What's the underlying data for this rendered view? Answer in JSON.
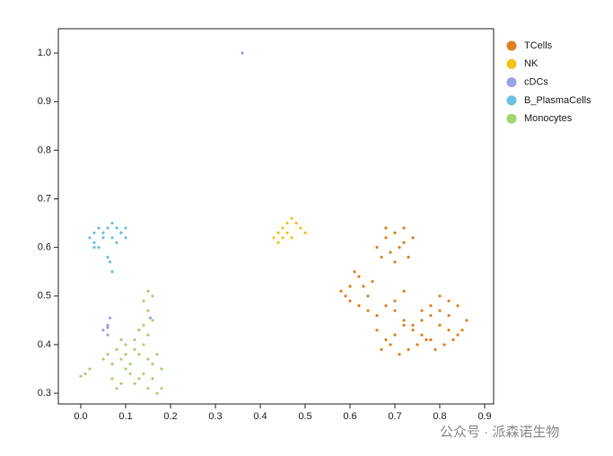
{
  "chart_data": {
    "type": "scatter",
    "xlim": [
      -0.05,
      0.92
    ],
    "ylim": [
      0.278,
      1.05
    ],
    "xticks": [
      {
        "value": 0,
        "label": "0.0"
      },
      0.1,
      0.2,
      0.3,
      0.4,
      0.5,
      0.6,
      0.7,
      0.8,
      0.9
    ],
    "yticks": [
      0.3,
      0.4,
      0.5,
      0.6,
      0.7,
      0.8,
      0.9,
      {
        "value": 1,
        "label": "1.0"
      }
    ],
    "grid": false,
    "legend": "right",
    "watermark": "公众号 · 派森诺生物",
    "series": [
      {
        "name": "TCells",
        "color": "#e3801c",
        "x": [
          0.66,
          0.68,
          0.7,
          0.72,
          0.74,
          0.67,
          0.69,
          0.71,
          0.73,
          0.7,
          0.72,
          0.68,
          0.58,
          0.6,
          0.61,
          0.62,
          0.63,
          0.64,
          0.6,
          0.62,
          0.65,
          0.59,
          0.64,
          0.66,
          0.68,
          0.7,
          0.72,
          0.74,
          0.76,
          0.78,
          0.8,
          0.82,
          0.84,
          0.86,
          0.66,
          0.68,
          0.7,
          0.72,
          0.74,
          0.76,
          0.78,
          0.8,
          0.82,
          0.84,
          0.67,
          0.69,
          0.71,
          0.73,
          0.75,
          0.77,
          0.79,
          0.81,
          0.83,
          0.85,
          0.7,
          0.72,
          0.8,
          0.82,
          0.78,
          0.76
        ],
        "values": [
          0.6,
          0.62,
          0.63,
          0.61,
          0.62,
          0.58,
          0.59,
          0.6,
          0.58,
          0.57,
          0.64,
          0.64,
          0.51,
          0.52,
          0.55,
          0.54,
          0.52,
          0.5,
          0.49,
          0.48,
          0.53,
          0.5,
          0.47,
          0.46,
          0.48,
          0.47,
          0.45,
          0.44,
          0.45,
          0.46,
          0.47,
          0.49,
          0.48,
          0.45,
          0.43,
          0.41,
          0.42,
          0.44,
          0.43,
          0.42,
          0.41,
          0.44,
          0.43,
          0.42,
          0.39,
          0.4,
          0.38,
          0.39,
          0.4,
          0.41,
          0.39,
          0.4,
          0.41,
          0.43,
          0.49,
          0.51,
          0.5,
          0.46,
          0.48,
          0.47
        ]
      },
      {
        "name": "NK",
        "color": "#f0c419",
        "x": [
          0.43,
          0.44,
          0.45,
          0.46,
          0.47,
          0.48,
          0.49,
          0.5,
          0.46,
          0.47,
          0.45,
          0.44
        ],
        "values": [
          0.62,
          0.63,
          0.64,
          0.63,
          0.66,
          0.65,
          0.64,
          0.63,
          0.65,
          0.62,
          0.62,
          0.61
        ]
      },
      {
        "name": "cDCs",
        "color": "#9aa3e6",
        "x": [
          0.36,
          0.05,
          0.06,
          0.06,
          0.065,
          0.06,
          0.155
        ],
        "values": [
          1.0,
          0.43,
          0.42,
          0.435,
          0.455,
          0.44,
          0.455
        ]
      },
      {
        "name": "B_PlasmaCells",
        "color": "#6cc0e5",
        "x": [
          0.02,
          0.03,
          0.04,
          0.05,
          0.06,
          0.07,
          0.08,
          0.09,
          0.1,
          0.03,
          0.05,
          0.07,
          0.09,
          0.04,
          0.06,
          0.08,
          0.065,
          0.07,
          0.03,
          0.1
        ],
        "values": [
          0.62,
          0.63,
          0.64,
          0.63,
          0.64,
          0.65,
          0.64,
          0.63,
          0.62,
          0.61,
          0.62,
          0.62,
          0.63,
          0.6,
          0.58,
          0.61,
          0.57,
          0.55,
          0.6,
          0.64
        ]
      },
      {
        "name": "Monocytes",
        "color": "#a6d46e",
        "x": [
          0.0,
          0.01,
          0.02,
          0.05,
          0.06,
          0.07,
          0.08,
          0.09,
          0.1,
          0.11,
          0.12,
          0.13,
          0.14,
          0.15,
          0.16,
          0.17,
          0.18,
          0.07,
          0.09,
          0.11,
          0.13,
          0.15,
          0.17,
          0.08,
          0.1,
          0.12,
          0.14,
          0.16,
          0.18,
          0.09,
          0.15,
          0.14,
          0.15,
          0.16,
          0.15,
          0.16,
          0.13,
          0.12,
          0.1,
          0.14
        ],
        "values": [
          0.335,
          0.34,
          0.35,
          0.37,
          0.38,
          0.36,
          0.39,
          0.37,
          0.38,
          0.36,
          0.39,
          0.38,
          0.4,
          0.37,
          0.36,
          0.38,
          0.35,
          0.33,
          0.32,
          0.34,
          0.33,
          0.31,
          0.3,
          0.31,
          0.35,
          0.32,
          0.34,
          0.33,
          0.31,
          0.41,
          0.42,
          0.49,
          0.51,
          0.5,
          0.47,
          0.45,
          0.43,
          0.41,
          0.4,
          0.44
        ]
      }
    ]
  }
}
